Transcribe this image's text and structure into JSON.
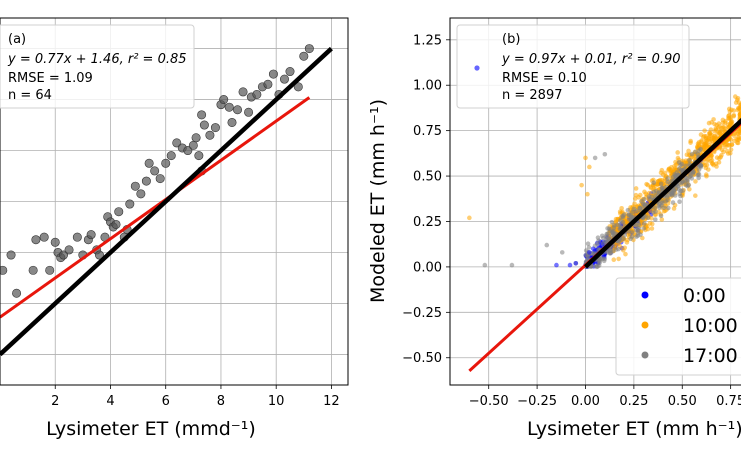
{
  "chart_data": [
    {
      "type": "scatter",
      "panel_label": "(a)",
      "annotation": {
        "equation": "y = 0.77x + 1.46, r² = 0.85",
        "rmse": "RMSE = 1.09",
        "n": "n = 64"
      },
      "xlabel": "Lysimeter ET (mmd⁻¹)",
      "ylabel": "",
      "xlim": [
        0.0,
        12.6
      ],
      "ylim": [
        -1.2,
        13.2
      ],
      "xticks": [
        2,
        4,
        6,
        8,
        10,
        12
      ],
      "xtick_labels": [
        "2",
        "4",
        "6",
        "8",
        "10",
        "12"
      ],
      "grid": true,
      "series": [
        {
          "kind": "points",
          "color": "#555555",
          "x": [
            0.1,
            0.4,
            0.6,
            1.2,
            1.3,
            1.6,
            1.8,
            2.0,
            2.1,
            2.2,
            2.3,
            2.5,
            2.8,
            3.0,
            3.2,
            3.3,
            3.5,
            3.6,
            3.8,
            3.9,
            4.0,
            4.1,
            4.2,
            4.3,
            4.5,
            4.6,
            4.7,
            4.9,
            5.1,
            5.3,
            5.4,
            5.6,
            5.8,
            6.0,
            6.2,
            6.4,
            6.6,
            6.8,
            7.0,
            7.1,
            7.2,
            7.3,
            7.4,
            7.6,
            7.8,
            8.0,
            8.1,
            8.3,
            8.4,
            8.6,
            8.8,
            9.0,
            9.1,
            9.3,
            9.5,
            9.7,
            9.9,
            10.1,
            10.3,
            10.5,
            10.8,
            11.0,
            11.2,
            7.3
          ],
          "y": [
            3.3,
            3.9,
            2.4,
            3.3,
            4.5,
            4.6,
            3.3,
            4.4,
            4.0,
            3.8,
            3.9,
            4.1,
            4.6,
            3.9,
            4.5,
            4.7,
            4.1,
            3.9,
            4.6,
            5.4,
            5.2,
            5.0,
            5.1,
            5.6,
            4.6,
            4.9,
            5.9,
            6.6,
            6.3,
            6.8,
            7.5,
            7.2,
            6.9,
            7.5,
            7.8,
            8.3,
            8.1,
            8.0,
            8.2,
            8.5,
            7.8,
            9.4,
            9.0,
            8.6,
            8.9,
            9.8,
            10.0,
            9.7,
            9.1,
            9.6,
            10.3,
            9.5,
            10.1,
            10.2,
            10.5,
            10.6,
            11.0,
            10.2,
            10.8,
            11.1,
            10.5,
            11.7,
            12.0,
            7.2
          ]
        },
        {
          "kind": "line",
          "color": "#e8160c",
          "x": [
            0.0,
            11.2
          ],
          "y": [
            1.46,
            10.08
          ]
        },
        {
          "kind": "line",
          "color": "#000000",
          "x": [
            0.0,
            12.0
          ],
          "y": [
            0.0,
            12.0
          ]
        }
      ]
    },
    {
      "type": "scatter",
      "panel_label": "(b)",
      "annotation": {
        "equation": "y = 0.97x + 0.01, r² = 0.90",
        "rmse": "RMSE = 0.10",
        "n": "n = 2897"
      },
      "xlabel": "Lysimeter ET (mm h⁻¹)",
      "ylabel": "Modeled ET (mm h⁻¹)",
      "xlim": [
        -0.7,
        0.85
      ],
      "ylim": [
        -0.65,
        1.37
      ],
      "xticks": [
        -0.5,
        -0.25,
        0.0,
        0.25,
        0.5,
        0.75
      ],
      "xtick_labels": [
        "−0.50",
        "−0.25",
        "0.00",
        "0.25",
        "0.50",
        "0.75"
      ],
      "yticks": [
        -0.5,
        -0.25,
        0.0,
        0.25,
        0.5,
        0.75,
        1.0,
        1.25
      ],
      "ytick_labels": [
        "−0.50",
        "−0.25",
        "0.00",
        "0.25",
        "0.50",
        "0.75",
        "1.00",
        "1.25"
      ],
      "grid": true,
      "legend": {
        "placement": "bottom-right",
        "entries": [
          {
            "label": "0:00",
            "color": "#0000ff"
          },
          {
            "label": "10:00",
            "color": "#ffa500"
          },
          {
            "label": "17:00",
            "color": "#808080"
          }
        ]
      },
      "series": [
        {
          "kind": "cloud",
          "name": "0:00",
          "color": "#0000ff",
          "x_range": [
            0.0,
            0.35
          ],
          "slope": 0.97,
          "intercept": 0.01,
          "spread": 0.05,
          "count": 260
        },
        {
          "kind": "cloud",
          "name": "10:00",
          "color": "#ffa500",
          "x_range": [
            0.12,
            0.85
          ],
          "slope": 0.97,
          "intercept": 0.03,
          "spread": 0.1,
          "count": 900
        },
        {
          "kind": "cloud",
          "name": "17:00",
          "color": "#808080",
          "x_range": [
            0.0,
            0.6
          ],
          "slope": 0.97,
          "intercept": 0.01,
          "spread": 0.08,
          "count": 360
        },
        {
          "kind": "points",
          "color": "#ffa500",
          "x": [
            -0.6,
            0.0,
            0.02,
            -0.02,
            0.01
          ],
          "y": [
            0.27,
            0.6,
            0.55,
            0.45,
            0.4
          ]
        },
        {
          "kind": "points",
          "color": "#808080",
          "x": [
            -0.52,
            -0.38,
            -0.2,
            -0.12,
            -0.05,
            0.05,
            0.1
          ],
          "y": [
            0.01,
            0.01,
            0.12,
            0.08,
            0.02,
            0.6,
            0.62
          ]
        },
        {
          "kind": "points",
          "color": "#0000ff",
          "x": [
            -0.15,
            -0.08,
            -0.05,
            0.02,
            0.04
          ],
          "y": [
            0.01,
            0.01,
            0.02,
            0.08,
            0.1
          ]
        },
        {
          "kind": "line",
          "color": "#e8160c",
          "x": [
            -0.6,
            0.85
          ],
          "y": [
            -0.572,
            0.8345
          ]
        },
        {
          "kind": "line",
          "color": "#000000",
          "x": [
            0.0,
            0.85
          ],
          "y": [
            0.0,
            0.85
          ]
        }
      ]
    }
  ]
}
